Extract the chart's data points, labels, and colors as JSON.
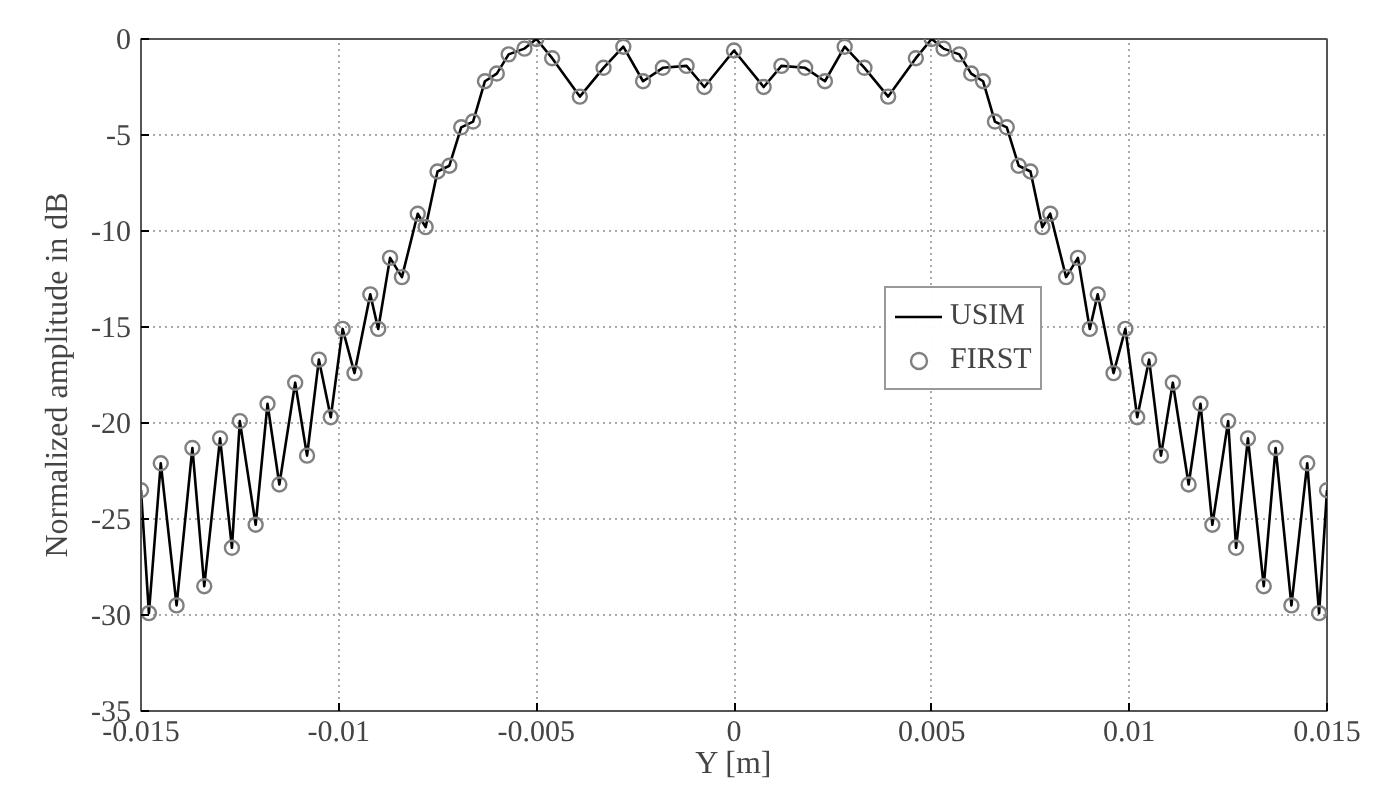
{
  "chart_data": {
    "type": "line",
    "xlabel": "Y [m]",
    "ylabel": "Normalized amplitude in dB",
    "x": [
      -0.015,
      -0.0148,
      -0.0145,
      -0.0141,
      -0.0137,
      -0.0134,
      -0.013,
      -0.0127,
      -0.0125,
      -0.0121,
      -0.0118,
      -0.0115,
      -0.0111,
      -0.0108,
      -0.0105,
      -0.0102,
      -0.0099,
      -0.0096,
      -0.0092,
      -0.009,
      -0.0087,
      -0.0084,
      -0.008,
      -0.0078,
      -0.0075,
      -0.0072,
      -0.0069,
      -0.0066,
      -0.0063,
      -0.006,
      -0.0057,
      -0.0053,
      -0.005,
      -0.0046,
      -0.0039,
      -0.0033,
      -0.0028,
      -0.0023,
      -0.0018,
      -0.0012,
      -0.00075,
      0,
      0.00075,
      0.0012,
      0.0018,
      0.0023,
      0.0028,
      0.0033,
      0.0039,
      0.0046,
      0.005,
      0.0053,
      0.0057,
      0.006,
      0.0063,
      0.0066,
      0.0069,
      0.0072,
      0.0075,
      0.0078,
      0.008,
      0.0084,
      0.0087,
      0.009,
      0.0092,
      0.0096,
      0.0099,
      0.0102,
      0.0105,
      0.0108,
      0.0111,
      0.0115,
      0.0118,
      0.0121,
      0.0125,
      0.0127,
      0.013,
      0.0134,
      0.0137,
      0.0141,
      0.0145,
      0.0148,
      0.015
    ],
    "series": [
      {
        "name": "USIM",
        "color": "#000000",
        "marker": "none",
        "values": [
          -23.5,
          -29.9,
          -22.1,
          -29.5,
          -21.3,
          -28.5,
          -20.8,
          -26.5,
          -19.9,
          -25.3,
          -19.0,
          -23.2,
          -17.9,
          -21.7,
          -16.7,
          -19.7,
          -15.1,
          -17.4,
          -13.3,
          -15.1,
          -11.4,
          -12.4,
          -9.1,
          -9.8,
          -6.9,
          -6.6,
          -4.6,
          -4.3,
          -2.2,
          -1.8,
          -0.8,
          -0.5,
          0,
          -1.0,
          -3.0,
          -1.5,
          -0.4,
          -2.2,
          -1.5,
          -1.4,
          -2.5,
          -0.6,
          -2.5,
          -1.4,
          -1.5,
          -2.2,
          -0.4,
          -1.5,
          -3.0,
          -1.0,
          0,
          -0.5,
          -0.8,
          -1.8,
          -2.2,
          -4.3,
          -4.6,
          -6.6,
          -6.9,
          -9.8,
          -9.1,
          -12.4,
          -11.4,
          -15.1,
          -13.3,
          -17.4,
          -15.1,
          -19.7,
          -16.7,
          -21.7,
          -17.9,
          -23.2,
          -19.0,
          -25.3,
          -19.9,
          -26.5,
          -20.8,
          -28.5,
          -21.3,
          -29.5,
          -22.1,
          -29.9,
          -23.5
        ]
      },
      {
        "name": "FIRST",
        "color": "#808080",
        "type": "scatter",
        "marker": "circle",
        "values": [
          -23.5,
          -29.9,
          -22.1,
          -29.5,
          -21.3,
          -28.5,
          -20.8,
          -26.5,
          -19.9,
          -25.3,
          -19.0,
          -23.2,
          -17.9,
          -21.7,
          -16.7,
          -19.7,
          -15.1,
          -17.4,
          -13.3,
          -15.1,
          -11.4,
          -12.4,
          -9.1,
          -9.8,
          -6.9,
          -6.6,
          -4.6,
          -4.3,
          -2.2,
          -1.8,
          -0.8,
          -0.5,
          0,
          -1.0,
          -3.0,
          -1.5,
          -0.4,
          -2.2,
          -1.5,
          -1.4,
          -2.5,
          -0.6,
          -2.5,
          -1.4,
          -1.5,
          -2.2,
          -0.4,
          -1.5,
          -3.0,
          -1.0,
          0,
          -0.5,
          -0.8,
          -1.8,
          -2.2,
          -4.3,
          -4.6,
          -6.6,
          -6.9,
          -9.8,
          -9.1,
          -12.4,
          -11.4,
          -15.1,
          -13.3,
          -17.4,
          -15.1,
          -19.7,
          -16.7,
          -21.7,
          -17.9,
          -23.2,
          -19.0,
          -25.3,
          -19.9,
          -26.5,
          -20.8,
          -28.5,
          -21.3,
          -29.5,
          -22.1,
          -29.9,
          -23.5
        ]
      }
    ],
    "xlim": [
      -0.015,
      0.015
    ],
    "ylim": [
      -35,
      0
    ],
    "xticks": [
      -0.015,
      -0.01,
      -0.005,
      0,
      0.005,
      0.01,
      0.015
    ],
    "yticks": [
      -35,
      -30,
      -25,
      -20,
      -15,
      -10,
      -5,
      0
    ],
    "grid": true,
    "legend": "right",
    "line_style": "solid"
  }
}
